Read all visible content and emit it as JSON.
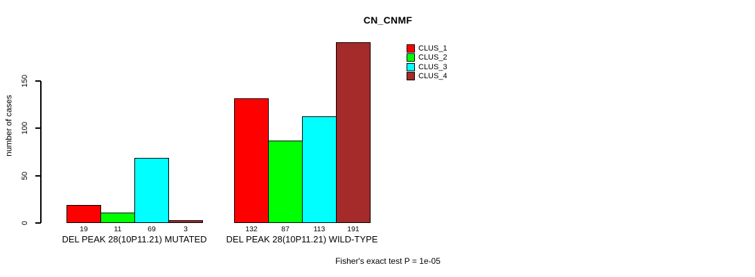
{
  "chart_data": {
    "type": "bar",
    "title": "CN_CNMF",
    "ylabel": "number of cases",
    "xlabel": "",
    "ylim": [
      0,
      150
    ],
    "yticks": [
      0,
      50,
      100,
      150
    ],
    "grid": false,
    "background": "#FFFFFF",
    "bar_border_color": "#000000",
    "legend_position": "upper-right",
    "legend_border": false,
    "categories": [
      "DEL PEAK 28(10P11.21) MUTATED",
      "DEL PEAK 28(10P11.21) WILD-TYPE"
    ],
    "series": [
      {
        "name": "CLUS_1",
        "color": "#FF0000",
        "values": [
          19,
          132
        ]
      },
      {
        "name": "CLUS_2",
        "color": "#00FF00",
        "values": [
          11,
          87
        ]
      },
      {
        "name": "CLUS_3",
        "color": "#00FFFF",
        "values": [
          69,
          113
        ]
      },
      {
        "name": "CLUS_4",
        "color": "#A52A2A",
        "values": [
          3,
          191
        ]
      }
    ],
    "show_bar_values": true,
    "annotation": "Fisher's exact test P = 1e-05"
  }
}
